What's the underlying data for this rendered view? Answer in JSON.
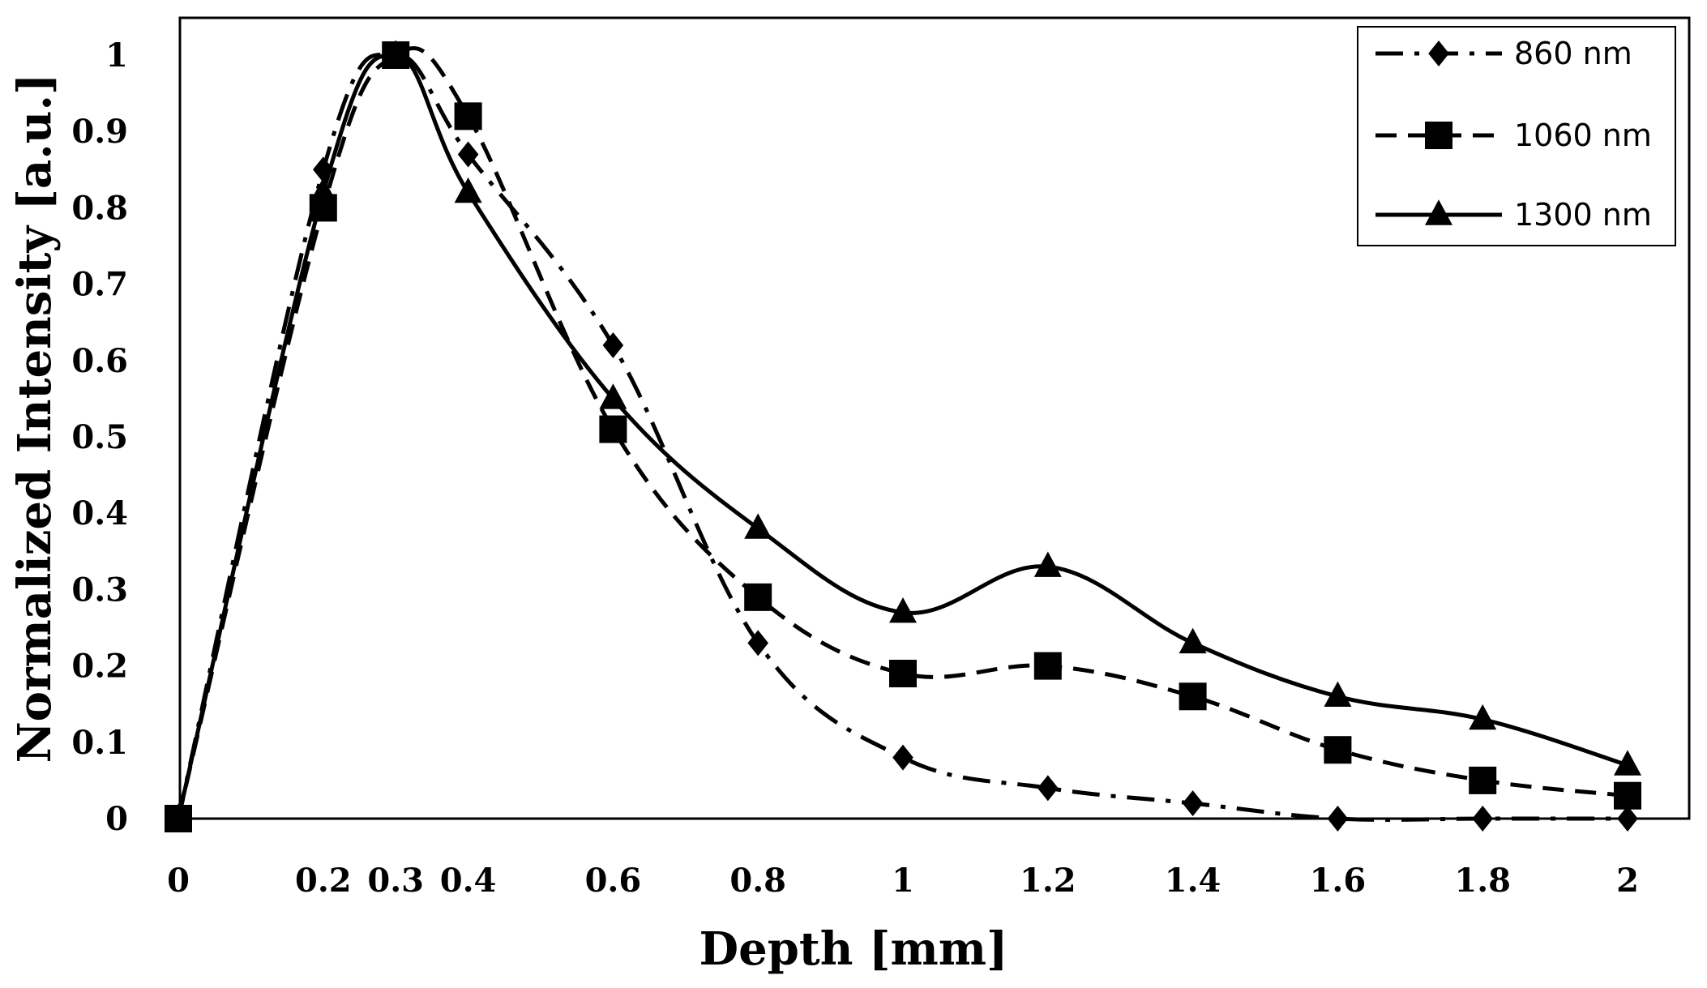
{
  "chart_data": {
    "type": "line",
    "title": "",
    "xlabel": "Depth [mm]",
    "ylabel": "Normalized Intensity [a.u.]",
    "categories": [
      "0",
      "0.2",
      "0.3",
      "0.4",
      "0.6",
      "0.8",
      "1",
      "1.2",
      "1.4",
      "1.6",
      "1.8",
      "2"
    ],
    "yticks": [
      "0",
      "0.1",
      "0.2",
      "0.3",
      "0.4",
      "0.5",
      "0.6",
      "0.7",
      "0.8",
      "0.9",
      "1"
    ],
    "ylim": [
      0,
      1
    ],
    "grid": false,
    "legend_position": "top-right",
    "series": [
      {
        "name": "860 nm",
        "marker": "diamond",
        "line_style": "dash-dot",
        "values": [
          0,
          0.85,
          1.0,
          0.87,
          0.62,
          0.23,
          0.08,
          0.04,
          0.02,
          0.0,
          0.0,
          0.0
        ]
      },
      {
        "name": "1060 nm",
        "marker": "square",
        "line_style": "dashed",
        "values": [
          0,
          0.8,
          1.0,
          0.92,
          0.51,
          0.29,
          0.19,
          0.2,
          0.16,
          0.09,
          0.05,
          0.03
        ]
      },
      {
        "name": "1300 nm",
        "marker": "triangle",
        "line_style": "solid",
        "values": [
          0,
          0.82,
          1.0,
          0.82,
          0.55,
          0.38,
          0.27,
          0.33,
          0.23,
          0.16,
          0.13,
          0.07
        ]
      }
    ]
  },
  "legend": {
    "items": [
      "860 nm",
      "1060 nm",
      "1300 nm"
    ]
  }
}
